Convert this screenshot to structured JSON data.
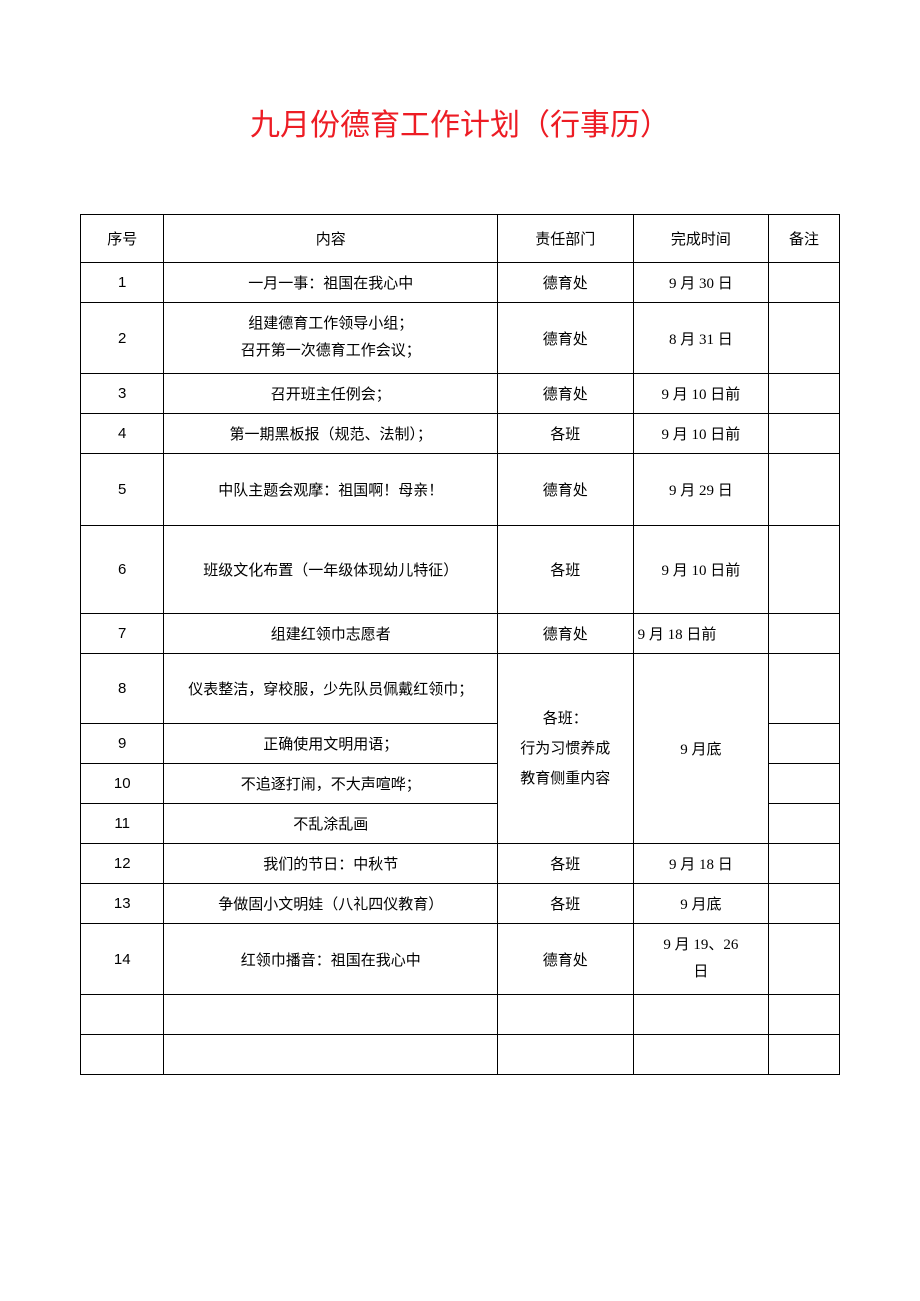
{
  "document": {
    "title": "九月份德育工作计划（行事历）",
    "title_color": "#ed1c24",
    "title_fontsize": 30,
    "background_color": "#ffffff",
    "border_color": "#000000",
    "text_color": "#000000",
    "body_fontsize": 15
  },
  "table": {
    "headers": {
      "seq": "序号",
      "content": "内容",
      "dept": "责任部门",
      "time": "完成时间",
      "note": "备注"
    },
    "column_widths": {
      "seq": 80,
      "content": 320,
      "dept": 130,
      "time": 130,
      "note": 68
    },
    "rows": [
      {
        "seq": "1",
        "content": "一月一事：祖国在我心中",
        "dept": "德育处",
        "time": "9 月 30 日",
        "note": ""
      },
      {
        "seq": "2",
        "content_line1": "组建德育工作领导小组；",
        "content_line2": "召开第一次德育工作会议；",
        "dept": "德育处",
        "time": "8 月 31 日",
        "note": ""
      },
      {
        "seq": "3",
        "content": "召开班主任例会；",
        "dept": "德育处",
        "time": "9 月 10 日前",
        "note": ""
      },
      {
        "seq": "4",
        "content": "第一期黑板报（规范、法制）；",
        "dept": "各班",
        "time": "9 月 10 日前",
        "note": ""
      },
      {
        "seq": "5",
        "content": "中队主题会观摩：祖国啊！母亲！",
        "dept": "德育处",
        "time": "9 月 29 日",
        "note": ""
      },
      {
        "seq": "6",
        "content": "班级文化布置（一年级体现幼儿特征）",
        "dept": "各班",
        "time": "9 月 10 日前",
        "note": ""
      },
      {
        "seq": "7",
        "content": "组建红领巾志愿者",
        "dept": "德育处",
        "time": "9 月 18 日前",
        "note": ""
      },
      {
        "seq": "8",
        "content": "仪表整洁，穿校服，少先队员佩戴红领巾；",
        "note": ""
      },
      {
        "seq": "9",
        "content": "正确使用文明用语；",
        "note": ""
      },
      {
        "seq": "10",
        "content": "不追逐打闹，不大声喧哗；",
        "note": ""
      },
      {
        "seq": "11",
        "content": "不乱涂乱画",
        "note": ""
      },
      {
        "seq": "12",
        "content": "我们的节日：中秋节",
        "dept": "各班",
        "time": "9 月 18 日",
        "note": ""
      },
      {
        "seq": "13",
        "content": "争做固小文明娃（八礼四仪教育）",
        "dept": "各班",
        "time": "9 月底",
        "note": ""
      },
      {
        "seq": "14",
        "content": "红领巾播音：祖国在我心中",
        "dept": "德育处",
        "time_line1": "9 月 19、26",
        "time_line2": "日",
        "note": ""
      }
    ],
    "merged_dept_8_11_line1": "各班：",
    "merged_dept_8_11_line2": "行为习惯养成",
    "merged_dept_8_11_line3": "教育侧重内容",
    "merged_time_8_11": "9 月底"
  }
}
